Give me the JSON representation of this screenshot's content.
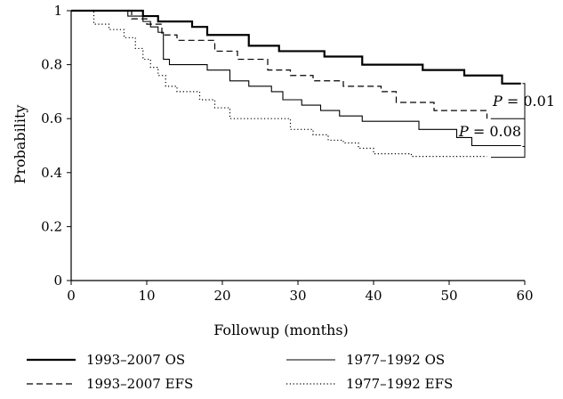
{
  "chart_data": {
    "type": "line",
    "subtype": "step",
    "xlabel": "Followup (months)",
    "ylabel": "Probability",
    "xlim": [
      0,
      60
    ],
    "ylim": [
      0,
      1
    ],
    "x_ticks": [
      "0",
      "10",
      "20",
      "30",
      "40",
      "50",
      "60"
    ],
    "y_ticks": [
      "0",
      "0.2",
      "0.4",
      "0.6",
      "0.8",
      "1"
    ],
    "grid": false,
    "legend_position": "bottom",
    "series": [
      {
        "name": "1993–2007 OS",
        "style": "thick-solid",
        "x": [
          0,
          9.5,
          11.5,
          16,
          18,
          23.5,
          27.5,
          33.5,
          38.5,
          46.5,
          52,
          57,
          59.5
        ],
        "y": [
          1.0,
          0.98,
          0.96,
          0.94,
          0.91,
          0.87,
          0.85,
          0.83,
          0.8,
          0.78,
          0.76,
          0.73,
          0.73
        ]
      },
      {
        "name": "1977–1992 OS",
        "style": "thin-solid",
        "x": [
          0,
          7.5,
          9.5,
          10.5,
          11.5,
          12.2,
          13,
          18,
          21,
          23.5,
          26.5,
          28,
          30.5,
          33,
          35.5,
          38.5,
          46,
          51,
          53,
          59.5
        ],
        "y": [
          1.0,
          0.98,
          0.96,
          0.94,
          0.92,
          0.82,
          0.8,
          0.78,
          0.74,
          0.72,
          0.7,
          0.67,
          0.65,
          0.63,
          0.61,
          0.59,
          0.56,
          0.53,
          0.5,
          0.5
        ]
      },
      {
        "name": "1993–2007 EFS",
        "style": "dashed",
        "x": [
          0,
          8,
          10,
          12,
          14,
          19,
          22,
          26,
          29,
          32,
          36,
          41,
          43,
          48,
          55
        ],
        "y": [
          1.0,
          0.97,
          0.95,
          0.91,
          0.89,
          0.85,
          0.82,
          0.78,
          0.76,
          0.74,
          0.72,
          0.7,
          0.66,
          0.63,
          0.6
        ]
      },
      {
        "name": "1977–1992 EFS",
        "style": "dotted",
        "x": [
          0,
          3,
          5,
          7,
          8.5,
          9.5,
          10.5,
          11.5,
          12.5,
          14,
          17,
          19,
          21,
          29,
          32,
          34,
          36,
          38,
          40,
          45,
          52,
          55
        ],
        "y": [
          1.0,
          0.95,
          0.93,
          0.9,
          0.86,
          0.82,
          0.79,
          0.76,
          0.72,
          0.7,
          0.67,
          0.64,
          0.6,
          0.56,
          0.54,
          0.52,
          0.51,
          0.49,
          0.47,
          0.46,
          0.46,
          0.46
        ]
      }
    ],
    "annotations": [
      {
        "text": "P = 0.01",
        "pair": "OS"
      },
      {
        "text": "P = 0.08",
        "pair": "EFS"
      }
    ]
  }
}
